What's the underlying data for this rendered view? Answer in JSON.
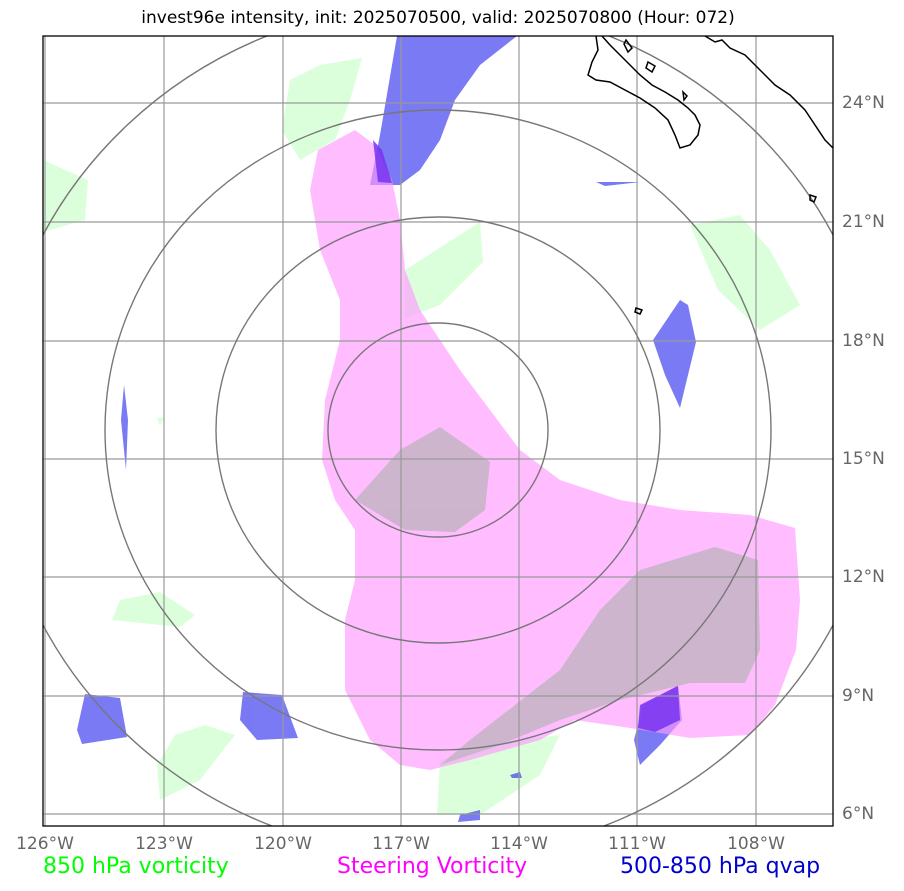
{
  "title": "invest96e intensity, init: 2025070500, valid: 2025070800 (Hour: 072)",
  "lon_labels": [
    "126°W",
    "123°W",
    "120°W",
    "117°W",
    "114°W",
    "111°W",
    "108°W"
  ],
  "lat_labels": [
    "24°N",
    "21°N",
    "18°N",
    "15°N",
    "12°N",
    "9°N",
    "6°N"
  ],
  "legend": {
    "vorticity_850": {
      "label": "850 hPa vorticity",
      "color": "#00ff00"
    },
    "steering": {
      "label": "Steering Vorticity",
      "color": "#ff00ff"
    },
    "qvap": {
      "label": "500-850 hPa qvap",
      "color": "#0000cc"
    }
  },
  "colors": {
    "vort850_fill": "#ccffcc",
    "steering_fill": "#ff99ff",
    "qvap_fill": "#3333ee",
    "overlap_fill": "#ccbbcc",
    "grid": "#999999",
    "range_rings": "#777777",
    "coastline": "#000000"
  }
}
